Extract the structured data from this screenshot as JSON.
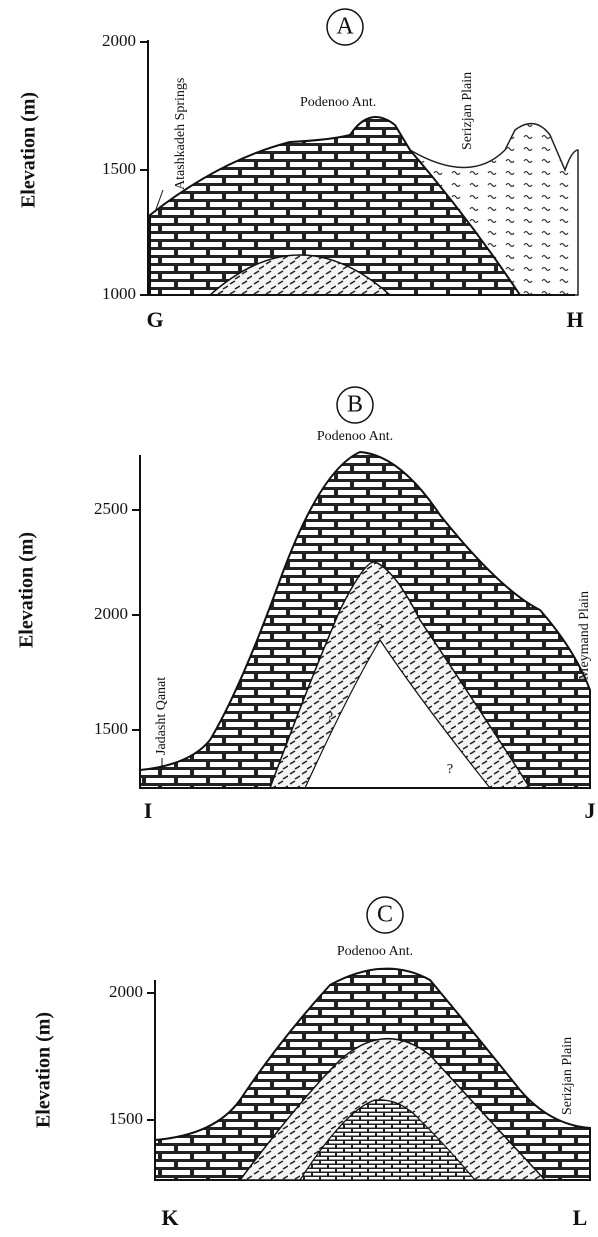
{
  "panels": [
    {
      "label": "A",
      "axis_label": "Elevation (m)",
      "ticks": [
        2000,
        1500,
        1000
      ],
      "start_label": "G",
      "end_label": "H",
      "annotations": [
        "Atashkadeh Springs",
        "Podenoo Ant.",
        "Serizjan Plain"
      ]
    },
    {
      "label": "B",
      "axis_label": "Elevation (m)",
      "ticks": [
        2500,
        2000,
        1500
      ],
      "start_label": "I",
      "end_label": "J",
      "annotations": [
        "Podenoo Ant.",
        "Jadasht Qanat",
        "Meymand Plain",
        "?",
        "?",
        "?"
      ]
    },
    {
      "label": "C",
      "axis_label": "Elevation (m)",
      "ticks": [
        2000,
        1500
      ],
      "start_label": "K",
      "end_label": "L",
      "annotations": [
        "Podenoo Ant.",
        "Serizjan Plain"
      ]
    }
  ]
}
